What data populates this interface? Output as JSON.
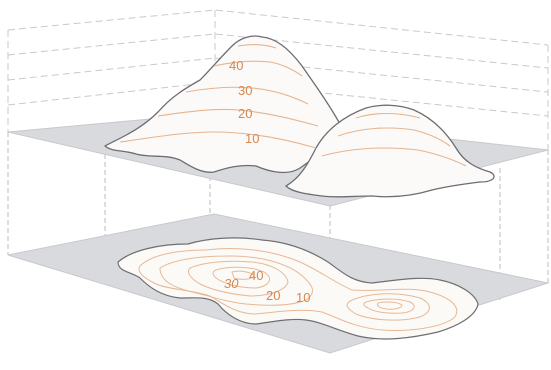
{
  "terrain_labels": {
    "elev_40": "40",
    "elev_30": "30",
    "elev_20": "20",
    "elev_10": "10"
  },
  "map_labels": {
    "elev_30": "30",
    "elev_40": "40",
    "elev_20": "20",
    "elev_10": "10"
  },
  "colors": {
    "plane": "#d9dadd",
    "contour": "#e5b48f",
    "label": "#d7874f",
    "outline": "#6d6d72"
  }
}
